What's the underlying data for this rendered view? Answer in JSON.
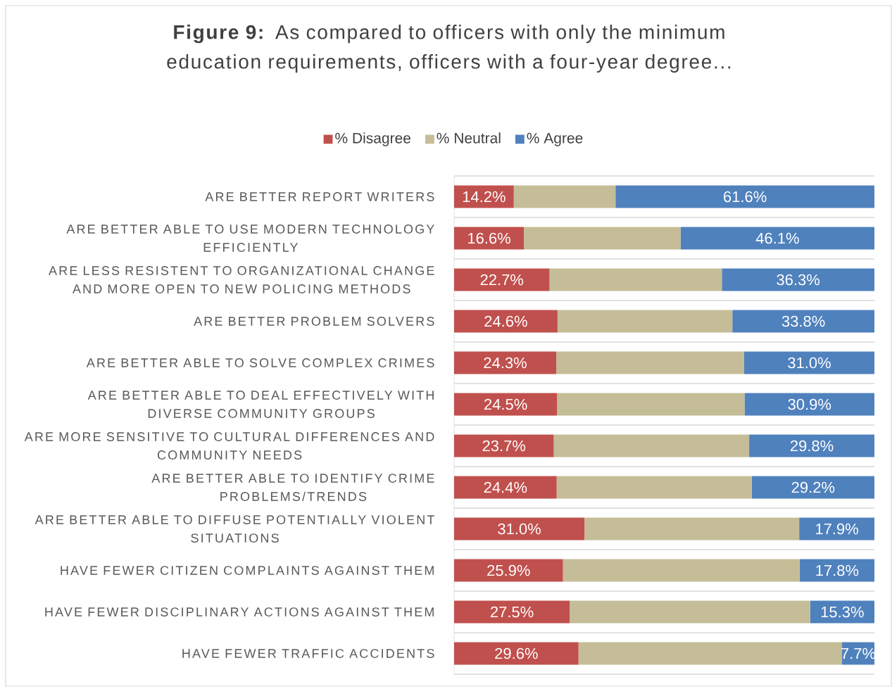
{
  "chart_data": {
    "type": "bar",
    "orientation": "horizontal",
    "stacked": true,
    "title": "**Figure 9:** As compared to officers with only the minimum education requirements, officers with a four-year degree...",
    "categories": [
      "ARE BETTER REPORT WRITERS",
      "ARE BETTER ABLE TO USE MODERN TECHNOLOGY EFFICIENTLY",
      "ARE LESS RESISTENT TO ORGANIZATIONAL CHANGE AND MORE OPEN TO NEW POLICING METHODS",
      "ARE BETTER PROBLEM SOLVERS",
      "ARE BETTER ABLE TO SOLVE COMPLEX CRIMES",
      "ARE BETTER ABLE TO DEAL EFFECTIVELY WITH DIVERSE COMMUNITY GROUPS",
      "ARE MORE SENSITIVE TO CULTURAL DIFFERENCES AND COMMUNITY NEEDS",
      "ARE BETTER ABLE TO IDENTIFY CRIME PROBLEMS/TRENDS",
      "ARE BETTER ABLE TO DIFFUSE POTENTIALLY VIOLENT SITUATIONS",
      "HAVE FEWER CITIZEN COMPLAINTS AGAINST THEM",
      "HAVE FEWER DISCIPLINARY ACTIONS AGAINST THEM",
      "HAVE FEWER TRAFFIC ACCIDENTS"
    ],
    "series": [
      {
        "name": "% Disagree",
        "color": "#c0504d",
        "values": [
          14.2,
          16.6,
          22.7,
          24.6,
          24.3,
          24.5,
          23.7,
          24.4,
          31.0,
          25.9,
          27.5,
          29.6
        ],
        "value_labels": [
          "14.2%",
          "16.6%",
          "22.7%",
          "24.6%",
          "24.3%",
          "24.5%",
          "23.7%",
          "24.4%",
          "31.0%",
          "25.9%",
          "27.5%",
          "29.6%"
        ]
      },
      {
        "name": "% Neutral",
        "color": "#c4bd97",
        "values": [
          24.2,
          37.3,
          41.0,
          41.6,
          44.7,
          44.6,
          46.5,
          46.4,
          51.1,
          56.3,
          57.2,
          62.7
        ]
      },
      {
        "name": "% Agree",
        "color": "#4f81bd",
        "values": [
          61.6,
          46.1,
          36.3,
          33.8,
          31.0,
          30.9,
          29.8,
          29.2,
          17.9,
          17.8,
          15.3,
          7.7
        ],
        "value_labels": [
          "61.6%",
          "46.1%",
          "36.3%",
          "33.8%",
          "31.0%",
          "30.9%",
          "29.8%",
          "29.2%",
          "17.9%",
          "17.8%",
          "15.3%",
          "7.7%"
        ]
      }
    ],
    "grid": "y",
    "legend": "top"
  }
}
